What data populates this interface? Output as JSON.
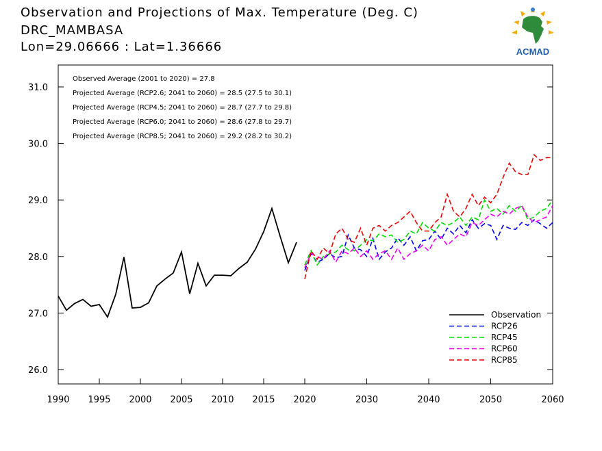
{
  "title": {
    "line1": "Observation and Projections of Max. Temperature (Deg. C)",
    "line2": "DRC_MAMBASA",
    "line3": "Lon=29.06666 : Lat=1.36666"
  },
  "logo": {
    "text": "ACMAD",
    "icon": "africa-map-logo"
  },
  "chart_data": {
    "type": "line",
    "title": "Observation and Projections of Max. Temperature (Deg. C)",
    "xlim": [
      1990,
      2060
    ],
    "ylim": [
      25.8,
      31.4
    ],
    "grid": false,
    "legend_position": "bottom-right",
    "x_ticks": [
      1990,
      1995,
      2000,
      2005,
      2010,
      2015,
      2020,
      2030,
      2040,
      2050,
      2060
    ],
    "y_ticks": [
      26.0,
      27.0,
      28.0,
      29.0,
      30.0,
      31.0
    ],
    "y_tick_labels": [
      "26.0",
      "27.0",
      "28.0",
      "29.0",
      "30.0",
      "31.0"
    ],
    "annotations": [
      "Observed Average (2001 to 2020) = 27.8",
      "Projected Average (RCP2.6; 2041 to 2060) = 28.5 (27.5 to 30.1)",
      "Projected Average (RCP4.5; 2041 to 2060) = 28.7 (27.7 to 29.8)",
      "Projected Average (RCP6.0; 2041 to 2060) = 28.6 (27.8 to 29.7)",
      "Projected Average (RCP8.5; 2041 to 2060) = 29.2 (28.2 to 30.2)"
    ],
    "series": [
      {
        "name": "Observation",
        "color": "#000000",
        "dashed": false,
        "x": [
          1990,
          1991,
          1992,
          1993,
          1994,
          1995,
          1996,
          1997,
          1998,
          1999,
          2000,
          2001,
          2002,
          2003,
          2004,
          2005,
          2006,
          2007,
          2008,
          2009,
          2010,
          2011,
          2012,
          2013,
          2014,
          2015,
          2016,
          2017,
          2018,
          2019,
          2020
        ],
        "y": [
          27.3,
          27.05,
          27.17,
          27.24,
          27.12,
          27.15,
          26.93,
          27.33,
          27.99,
          27.09,
          27.1,
          27.18,
          27.48,
          27.6,
          27.71,
          28.08,
          27.34,
          27.88,
          27.48,
          27.67,
          27.67,
          27.66,
          27.79,
          27.9,
          28.13,
          28.44,
          28.85,
          28.36,
          27.89,
          28.25,
          null
        ]
      },
      {
        "name": "RCP26",
        "color": "#0000ee",
        "dashed": true,
        "x": [
          2020,
          2021,
          2022,
          2023,
          2024,
          2025,
          2026,
          2027,
          2028,
          2029,
          2030,
          2031,
          2032,
          2033,
          2034,
          2035,
          2036,
          2037,
          2038,
          2039,
          2040,
          2041,
          2042,
          2043,
          2044,
          2045,
          2046,
          2047,
          2048,
          2049,
          2050,
          2051,
          2052,
          2053,
          2054,
          2055,
          2056,
          2057,
          2058,
          2059,
          2060
        ],
        "y": [
          27.75,
          28.05,
          27.9,
          27.95,
          28.05,
          27.98,
          28.0,
          28.38,
          28.15,
          28.12,
          28.0,
          28.32,
          27.95,
          28.08,
          28.15,
          28.33,
          28.2,
          28.35,
          28.1,
          28.28,
          28.3,
          28.45,
          28.3,
          28.5,
          28.4,
          28.55,
          28.42,
          28.65,
          28.5,
          28.58,
          28.55,
          28.3,
          28.55,
          28.5,
          28.48,
          28.6,
          28.55,
          28.65,
          28.58,
          28.5,
          28.6
        ]
      },
      {
        "name": "RCP45",
        "color": "#00dd00",
        "dashed": true,
        "x": [
          2020,
          2021,
          2022,
          2023,
          2024,
          2025,
          2026,
          2027,
          2028,
          2029,
          2030,
          2031,
          2032,
          2033,
          2034,
          2035,
          2036,
          2037,
          2038,
          2039,
          2040,
          2041,
          2042,
          2043,
          2044,
          2045,
          2046,
          2047,
          2048,
          2049,
          2050,
          2051,
          2052,
          2053,
          2054,
          2055,
          2056,
          2057,
          2058,
          2059,
          2060
        ],
        "y": [
          27.85,
          28.1,
          27.85,
          28.0,
          28.05,
          28.08,
          28.2,
          28.12,
          28.1,
          28.2,
          28.3,
          28.28,
          28.4,
          28.35,
          28.38,
          28.25,
          28.3,
          28.45,
          28.4,
          28.6,
          28.5,
          28.45,
          28.6,
          28.55,
          28.6,
          28.7,
          28.55,
          28.7,
          28.65,
          29.0,
          28.8,
          28.85,
          28.75,
          28.9,
          28.8,
          28.9,
          28.65,
          28.7,
          28.8,
          28.85,
          29.0
        ]
      },
      {
        "name": "RCP60",
        "color": "#ee00ee",
        "dashed": true,
        "x": [
          2020,
          2021,
          2022,
          2023,
          2024,
          2025,
          2026,
          2027,
          2028,
          2029,
          2030,
          2031,
          2032,
          2033,
          2034,
          2035,
          2036,
          2037,
          2038,
          2039,
          2040,
          2041,
          2042,
          2043,
          2044,
          2045,
          2046,
          2047,
          2048,
          2049,
          2050,
          2051,
          2052,
          2053,
          2054,
          2055,
          2056,
          2057,
          2058,
          2059,
          2060
        ],
        "y": [
          27.8,
          28.05,
          28.0,
          27.95,
          28.1,
          27.9,
          28.1,
          28.05,
          28.15,
          28.0,
          28.1,
          27.95,
          28.05,
          28.1,
          27.95,
          28.15,
          27.95,
          28.05,
          28.1,
          28.2,
          28.1,
          28.3,
          28.35,
          28.2,
          28.3,
          28.4,
          28.35,
          28.6,
          28.55,
          28.65,
          28.75,
          28.7,
          28.8,
          28.75,
          28.85,
          28.9,
          28.7,
          28.6,
          28.65,
          28.7,
          28.9
        ]
      },
      {
        "name": "RCP85",
        "color": "#ee0000",
        "dashed": true,
        "x": [
          2020,
          2021,
          2022,
          2023,
          2024,
          2025,
          2026,
          2027,
          2028,
          2029,
          2030,
          2031,
          2032,
          2033,
          2034,
          2035,
          2036,
          2037,
          2038,
          2039,
          2040,
          2041,
          2042,
          2043,
          2044,
          2045,
          2046,
          2047,
          2048,
          2049,
          2050,
          2051,
          2052,
          2053,
          2054,
          2055,
          2056,
          2057,
          2058,
          2059,
          2060
        ],
        "y": [
          27.6,
          28.1,
          27.95,
          28.15,
          28.05,
          28.4,
          28.5,
          28.3,
          28.25,
          28.5,
          28.2,
          28.5,
          28.55,
          28.45,
          28.55,
          28.6,
          28.7,
          28.8,
          28.6,
          28.45,
          28.45,
          28.6,
          28.7,
          29.1,
          28.8,
          28.7,
          28.85,
          29.1,
          28.9,
          29.05,
          28.95,
          29.1,
          29.4,
          29.65,
          29.5,
          29.45,
          29.45,
          29.8,
          29.7,
          29.75,
          29.75
        ]
      }
    ]
  }
}
